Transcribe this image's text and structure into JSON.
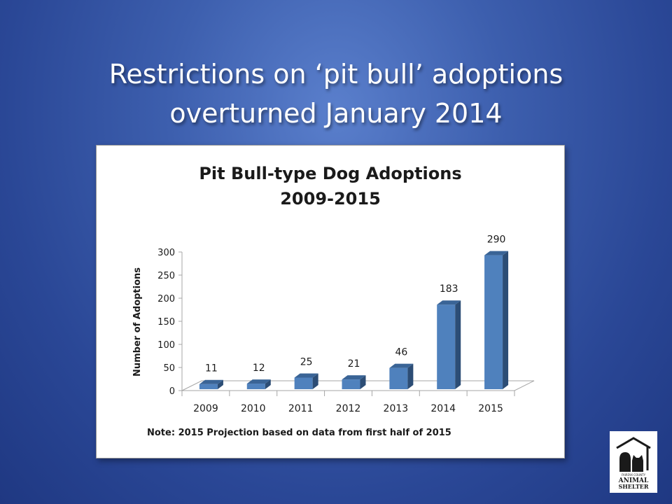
{
  "slide": {
    "title_line1": "Restrictions on ‘pit bull’ adoptions",
    "title_line2": "overturned January 2014"
  },
  "chart_data": {
    "type": "bar",
    "title": "Pit Bull-type Dog Adoptions",
    "subtitle": "2009-2015",
    "xlabel": "",
    "ylabel": "Number of Adoptions",
    "categories": [
      "2009",
      "2010",
      "2011",
      "2012",
      "2013",
      "2014",
      "2015"
    ],
    "values": [
      11,
      12,
      25,
      21,
      46,
      183,
      290
    ],
    "ylim": [
      0,
      300
    ],
    "yticks": [
      0,
      50,
      100,
      150,
      200,
      250,
      300
    ],
    "grid": false,
    "legend": "none",
    "bar_color": "#4f81bd",
    "note": "Note: 2015 Projection based on data from first half of 2015"
  },
  "logo": {
    "line1": "FAIRFAX COUNTY",
    "line2": "ANIMAL",
    "line3": "SHELTER"
  }
}
